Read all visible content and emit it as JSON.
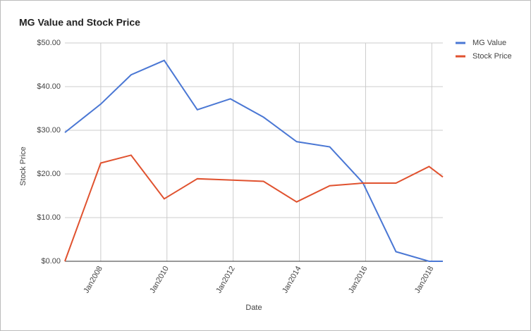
{
  "chart_data": {
    "type": "line",
    "title": "MG Value and Stock Price",
    "x_label": "Date",
    "y_label": "Stock Price",
    "x": [
      "2006-12",
      "2008-01",
      "2008-12",
      "2009-12",
      "2010-12",
      "2011-12",
      "2012-12",
      "2013-12",
      "2014-12",
      "2015-12",
      "2016-12",
      "2017-12",
      "2018-05"
    ],
    "xlim": [
      "2006-12",
      "2018-05"
    ],
    "xticks": [
      {
        "value": "2008-01",
        "label": "Jan2008"
      },
      {
        "value": "2010-01",
        "label": "Jan2010"
      },
      {
        "value": "2012-01",
        "label": "Jan2012"
      },
      {
        "value": "2014-01",
        "label": "Jan2014"
      },
      {
        "value": "2016-01",
        "label": "Jan2016"
      },
      {
        "value": "2018-01",
        "label": "Jan2018"
      }
    ],
    "ylim": [
      0,
      50
    ],
    "yticks": [
      {
        "value": 0,
        "label": "$0.00"
      },
      {
        "value": 10,
        "label": "$10.00"
      },
      {
        "value": 20,
        "label": "$20.00"
      },
      {
        "value": 30,
        "label": "$30.00"
      },
      {
        "value": 40,
        "label": "$40.00"
      },
      {
        "value": 50,
        "label": "$50.00"
      }
    ],
    "grid": true,
    "legend": "right",
    "series": [
      {
        "name": "MG Value",
        "color": "#4a77d4",
        "values": [
          29.5,
          36,
          42.7,
          46,
          34.7,
          37.2,
          33,
          27.4,
          26.2,
          18,
          2.2,
          0,
          0
        ]
      },
      {
        "name": "Stock Price",
        "color": "#e0522f",
        "values": [
          0,
          22.5,
          24.3,
          14.3,
          18.9,
          18.6,
          18.3,
          13.6,
          17.3,
          17.9,
          17.9,
          21.7,
          19.3
        ]
      }
    ]
  }
}
